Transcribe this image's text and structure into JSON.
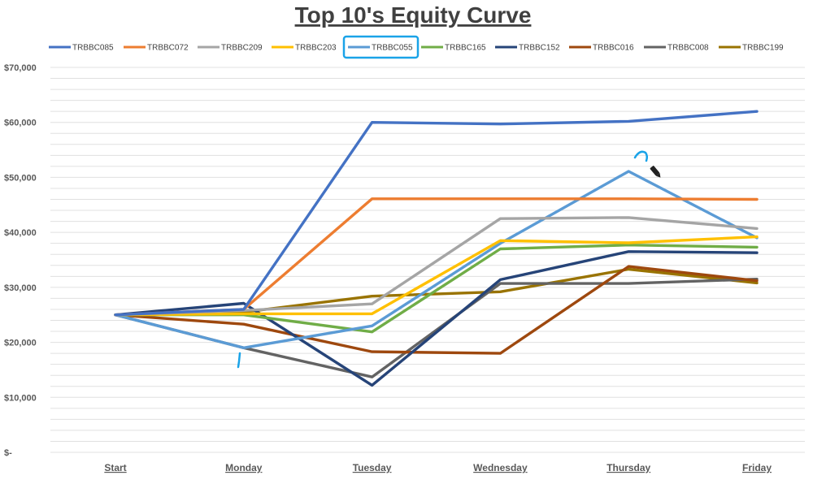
{
  "chart_data": {
    "type": "line",
    "title": "Top 10's Equity Curve",
    "xlabel": "",
    "ylabel": "",
    "categories": [
      "Start",
      "Monday",
      "Tuesday",
      "Wednesday",
      "Thursday",
      "Friday"
    ],
    "ylim": [
      0,
      70000
    ],
    "yticks": [
      0,
      10000,
      20000,
      30000,
      40000,
      50000,
      60000,
      70000
    ],
    "ytick_labels": [
      "$-",
      "$10,000",
      "$20,000",
      "$30,000",
      "$40,000",
      "$50,000",
      "$60,000",
      "$70,000"
    ],
    "grid": true,
    "legend_position": "top",
    "highlighted_series": "TRBBC055",
    "highlight_color": "#1aa3e8",
    "series": [
      {
        "name": "TRBBC085",
        "color": "#4472c4",
        "values": [
          25000,
          26000,
          60000,
          59700,
          60200,
          62000
        ]
      },
      {
        "name": "TRBBC072",
        "color": "#ed7d31",
        "values": [
          25000,
          26000,
          46100,
          46100,
          46100,
          46000
        ]
      },
      {
        "name": "TRBBC209",
        "color": "#a5a5a5",
        "values": [
          25000,
          25800,
          27000,
          42500,
          42700,
          40700
        ]
      },
      {
        "name": "TRBBC203",
        "color": "#ffc000",
        "values": [
          25000,
          25200,
          25200,
          38500,
          38100,
          39200
        ]
      },
      {
        "name": "TRBBC055",
        "color": "#5b9bd5",
        "values": [
          25000,
          19000,
          23000,
          38000,
          51100,
          39000
        ]
      },
      {
        "name": "TRBBC165",
        "color": "#70ad47",
        "values": [
          25000,
          25000,
          21900,
          37000,
          37700,
          37300
        ]
      },
      {
        "name": "TRBBC152",
        "color": "#264478",
        "values": [
          25000,
          27100,
          12200,
          31400,
          36500,
          36300
        ]
      },
      {
        "name": "TRBBC016",
        "color": "#9e480e",
        "values": [
          25000,
          23300,
          18300,
          18000,
          33800,
          31200
        ]
      },
      {
        "name": "TRBBC008",
        "color": "#636363",
        "values": [
          25000,
          19000,
          13700,
          30700,
          30700,
          31500
        ]
      },
      {
        "name": "TRBBC199",
        "color": "#997300",
        "values": [
          25000,
          25500,
          28400,
          29200,
          33300,
          30800
        ]
      }
    ]
  }
}
